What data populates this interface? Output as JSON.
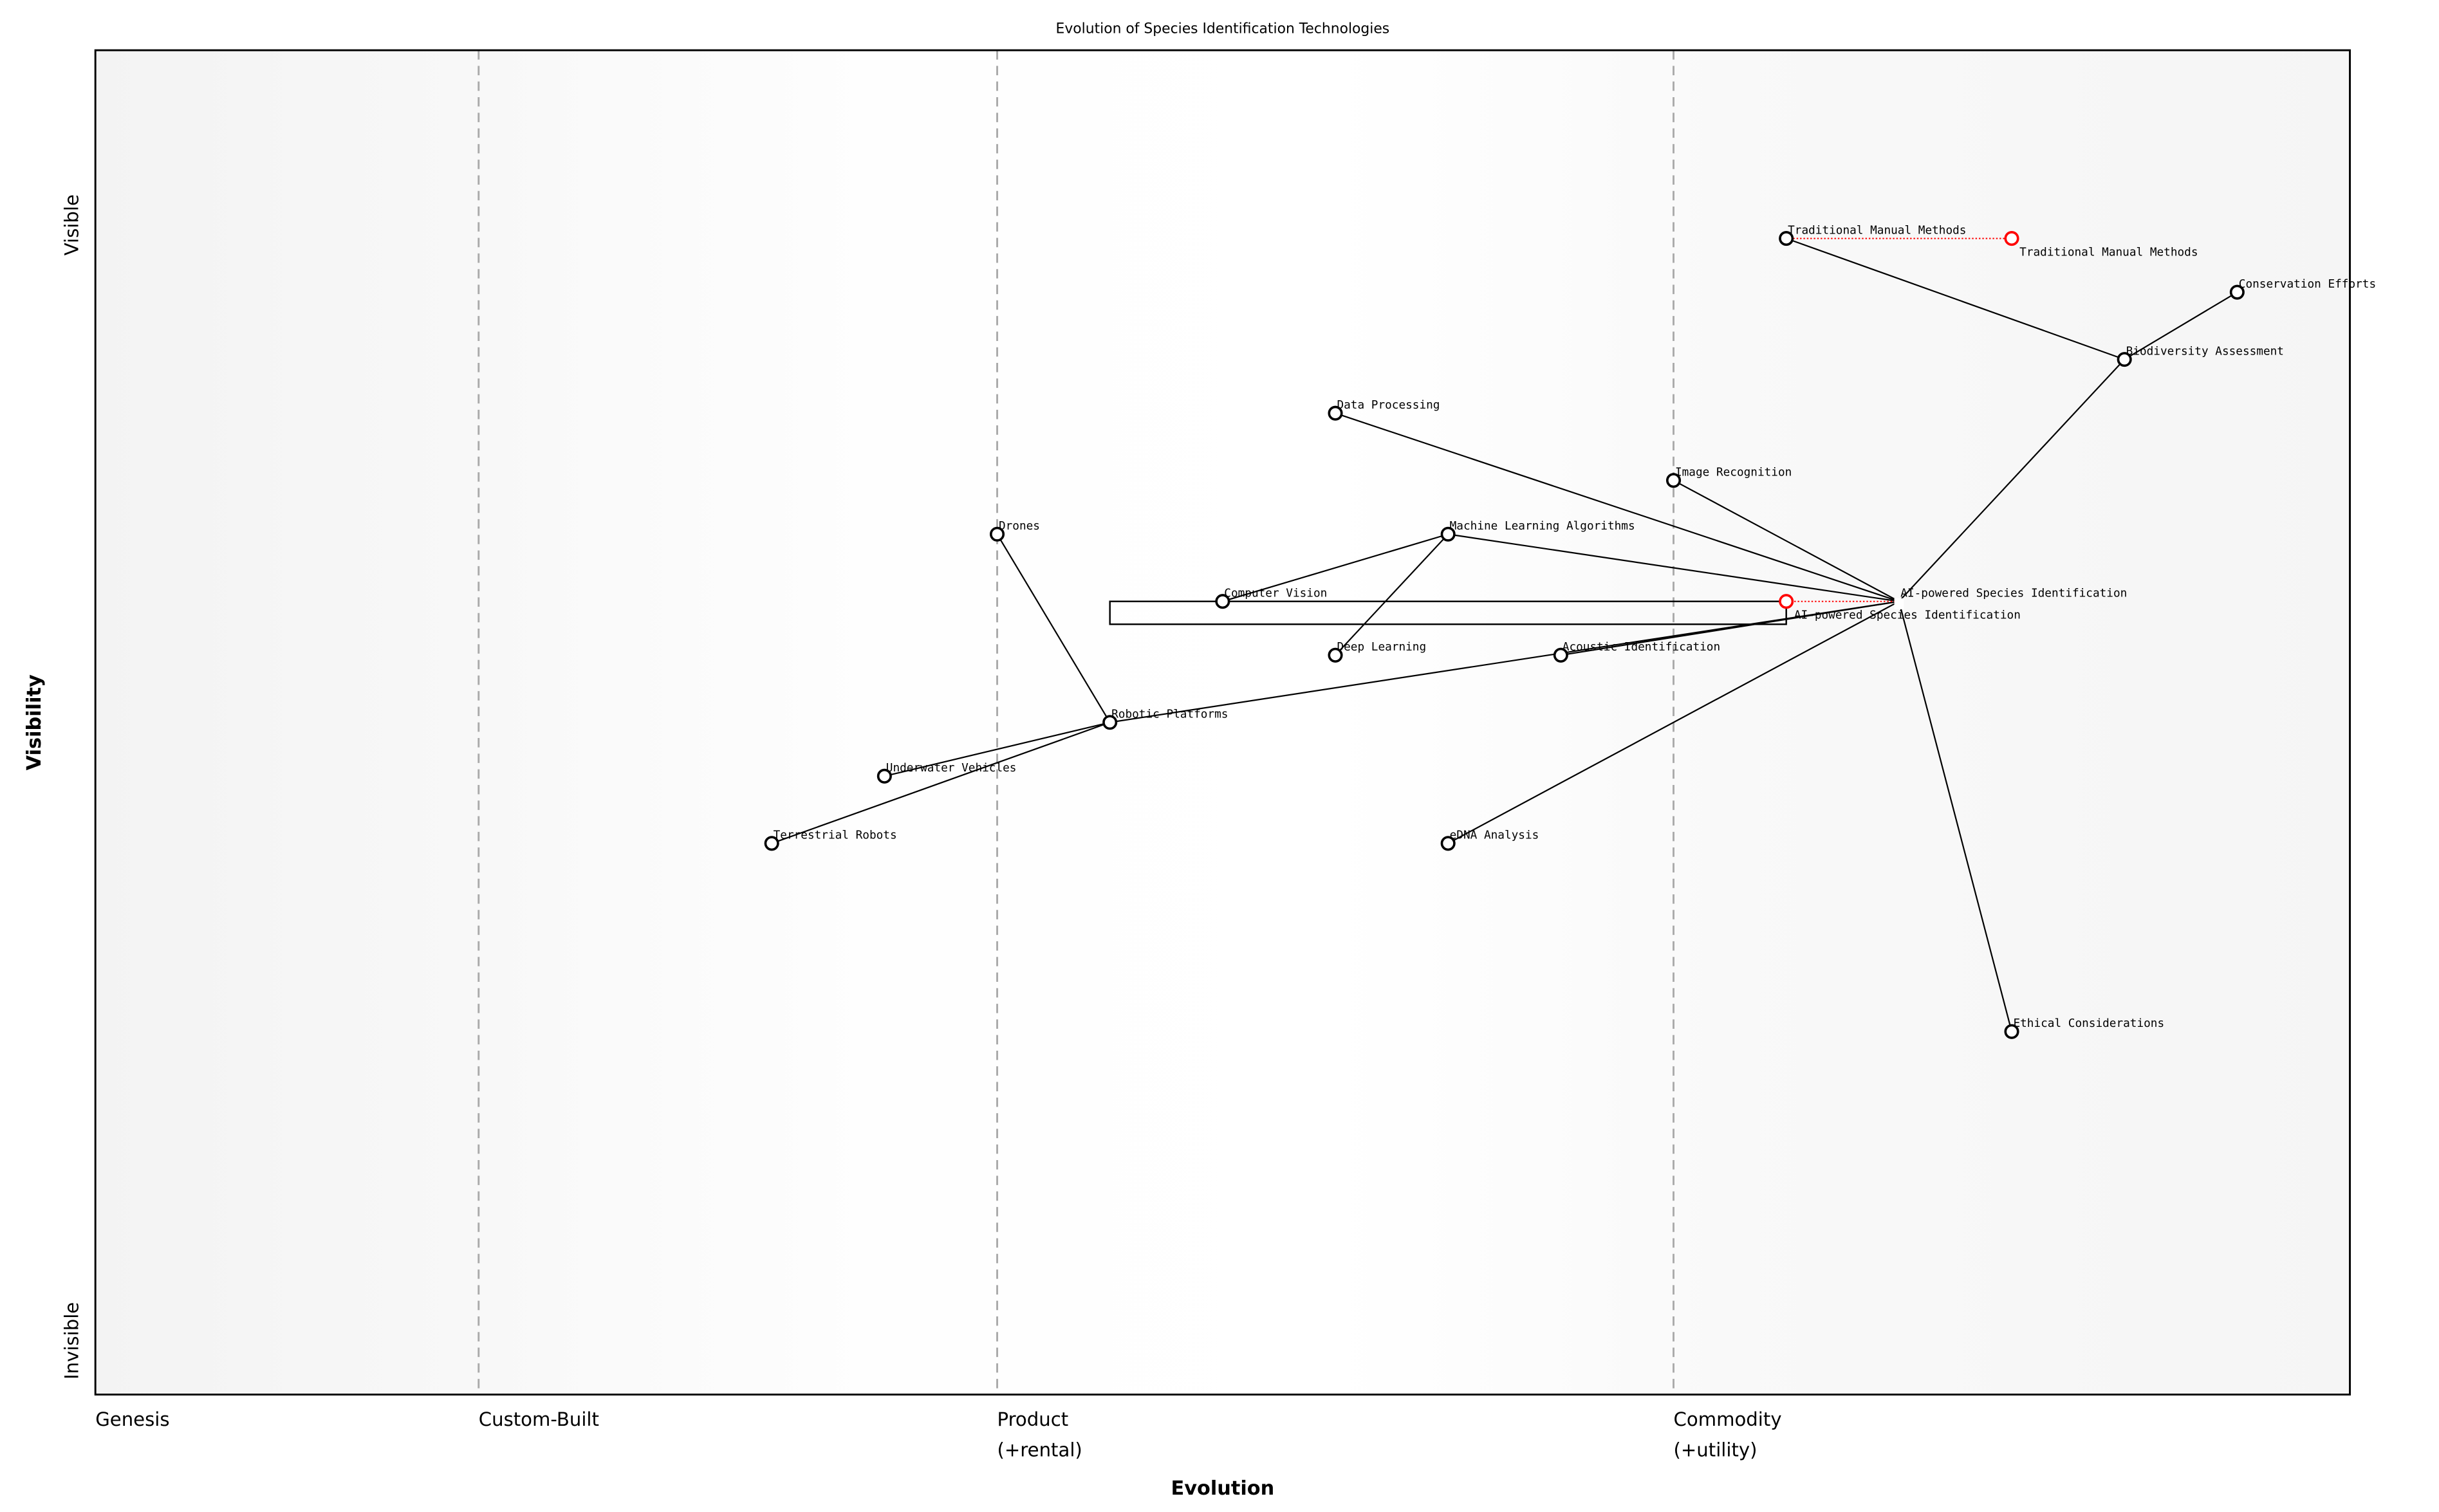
{
  "chart_data": {
    "type": "wardley-map",
    "title": "Evolution of Species Identification Technologies",
    "xlabel": "Evolution",
    "ylabel": "Visibility",
    "xlim": [
      0,
      1
    ],
    "ylim": [
      0,
      1
    ],
    "x_stages": [
      {
        "label": "Genesis",
        "x": 0.0
      },
      {
        "label": "Custom-Built",
        "x": 0.17
      },
      {
        "label": "Product\n(+rental)",
        "label_lines": [
          "Product",
          "(+rental)"
        ],
        "x": 0.4
      },
      {
        "label": "Commodity\n(+utility)",
        "label_lines": [
          "Commodity",
          "(+utility)"
        ],
        "x": 0.7
      }
    ],
    "y_ticks": [
      {
        "label": "Visible",
        "y": 0.87
      },
      {
        "label": "Invisible",
        "y": 0.04
      }
    ],
    "components": [
      {
        "name": "Traditional Manual Methods",
        "x": 0.75,
        "y": 0.86
      },
      {
        "name": "Conservation Efforts",
        "x": 0.95,
        "y": 0.82
      },
      {
        "name": "Biodiversity Assessment",
        "x": 0.9,
        "y": 0.77
      },
      {
        "name": "Data Processing",
        "x": 0.55,
        "y": 0.73
      },
      {
        "name": "Image Recognition",
        "x": 0.7,
        "y": 0.68
      },
      {
        "name": "Drones",
        "x": 0.4,
        "y": 0.64
      },
      {
        "name": "Machine Learning Algorithms",
        "x": 0.6,
        "y": 0.64
      },
      {
        "name": "Computer Vision",
        "x": 0.5,
        "y": 0.59
      },
      {
        "name": "AI-powered Species Identification",
        "x": 0.8,
        "y": 0.59,
        "hidden_marker": true
      },
      {
        "name": "Deep Learning",
        "x": 0.55,
        "y": 0.55
      },
      {
        "name": "Acoustic Identification",
        "x": 0.65,
        "y": 0.55
      },
      {
        "name": "Robotic Platforms",
        "x": 0.45,
        "y": 0.5
      },
      {
        "name": "Underwater Vehicles",
        "x": 0.35,
        "y": 0.46
      },
      {
        "name": "Terrestrial Robots",
        "x": 0.3,
        "y": 0.41
      },
      {
        "name": "eDNA Analysis",
        "x": 0.6,
        "y": 0.41
      },
      {
        "name": "Ethical Considerations",
        "x": 0.85,
        "y": 0.27
      }
    ],
    "evolved_components": [
      {
        "name": "Traditional Manual Methods",
        "from_x": 0.75,
        "x": 0.85,
        "y": 0.86
      },
      {
        "name": "AI-powered Species Identification",
        "from_x": 0.8,
        "x": 0.75,
        "y": 0.59
      }
    ],
    "links": [
      [
        "Traditional Manual Methods",
        "Biodiversity Assessment"
      ],
      [
        "Biodiversity Assessment",
        "Conservation Efforts"
      ],
      [
        "Biodiversity Assessment",
        "AI-powered Species Identification"
      ],
      [
        "Data Processing",
        "AI-powered Species Identification"
      ],
      [
        "Image Recognition",
        "AI-powered Species Identification"
      ],
      [
        "Machine Learning Algorithms",
        "AI-powered Species Identification"
      ],
      [
        "Computer Vision",
        "Machine Learning Algorithms"
      ],
      [
        "Deep Learning",
        "Machine Learning Algorithms"
      ],
      [
        "Acoustic Identification",
        "AI-powered Species Identification"
      ],
      [
        "Robotic Platforms",
        "AI-powered Species Identification"
      ],
      [
        "eDNA Analysis",
        "AI-powered Species Identification"
      ],
      [
        "Ethical Considerations",
        "AI-powered Species Identification"
      ],
      [
        "Drones",
        "Robotic Platforms"
      ],
      [
        "Underwater Vehicles",
        "Robotic Platforms"
      ],
      [
        "Terrestrial Robots",
        "Robotic Platforms"
      ]
    ],
    "pipeline": {
      "x_start": 0.45,
      "x_end": 0.75,
      "y_top": 0.59,
      "y_bottom": 0.573
    },
    "colors": {
      "node": "#000000",
      "evolved_node": "#ff0000",
      "stage_divider": "#aaaaaa",
      "background_edge": "#f3f3f3",
      "background_mid": "#ffffff"
    },
    "grid": false
  }
}
